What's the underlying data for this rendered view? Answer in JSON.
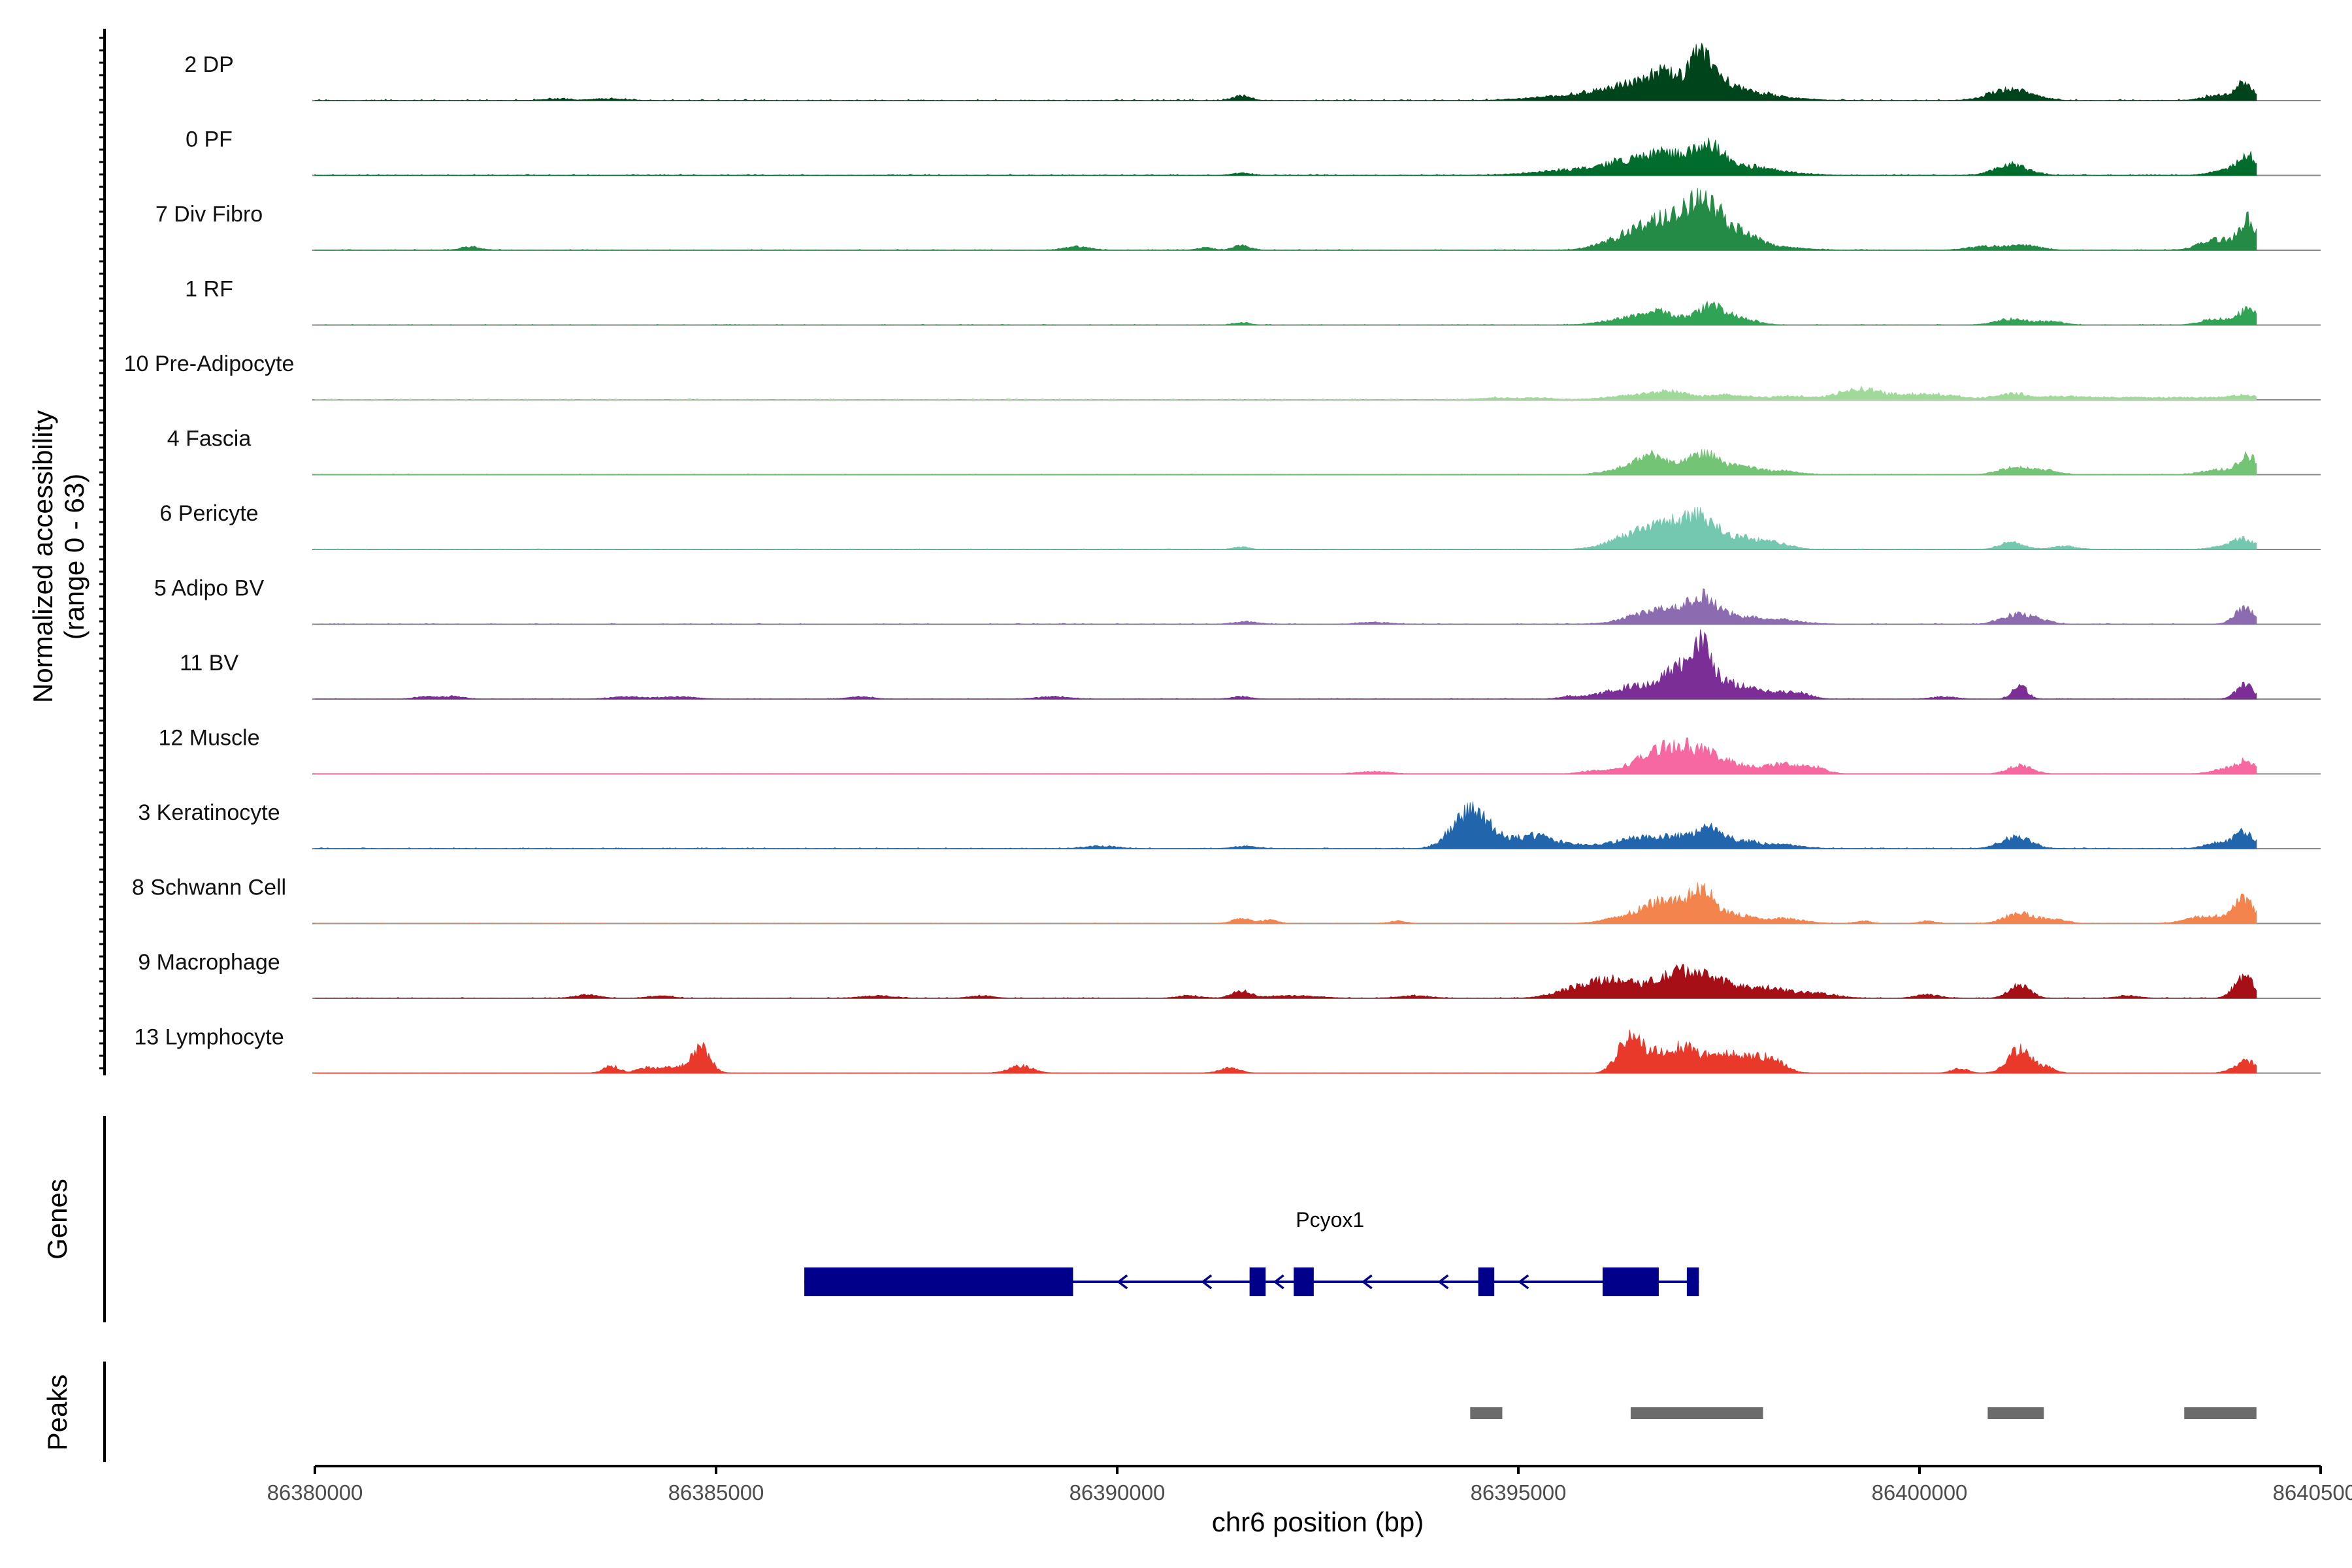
{
  "chart_data": {
    "type": "area",
    "title": "",
    "ylabel_line1": "Normalized accessibility",
    "ylabel_line2": "(range 0 - 63)",
    "ylim": [
      0,
      63
    ],
    "xlabel": "chr6 position (bp)",
    "xlim": [
      86380000,
      86405000
    ],
    "xticks": [
      86380000,
      86385000,
      86390000,
      86395000,
      86400000,
      86405000
    ],
    "xtick_labels": [
      "86380000",
      "86385000",
      "86390000",
      "86395000",
      "86400000",
      "86405000"
    ],
    "data_end": 86404200,
    "genes_panel_label": "Genes",
    "peaks_panel_label": "Peaks",
    "tracks": [
      {
        "name": "2 DP",
        "color": "#00441b",
        "noise": [
          1.2,
          0.35
        ],
        "peaks": [
          [
            86395800,
            500,
            5
          ],
          [
            86396300,
            250,
            9
          ],
          [
            86396750,
            200,
            13
          ],
          [
            86397000,
            300,
            12
          ],
          [
            86397250,
            100,
            15
          ],
          [
            86397400,
            200,
            22
          ],
          [
            86397850,
            250,
            6
          ],
          [
            86398300,
            300,
            2
          ],
          [
            86401100,
            220,
            10
          ],
          [
            86401500,
            150,
            2
          ],
          [
            86403700,
            180,
            4
          ],
          [
            86404050,
            110,
            15
          ],
          [
            86391550,
            100,
            4
          ],
          [
            86383000,
            150,
            1.5
          ],
          [
            86383650,
            200,
            1.5
          ]
        ]
      },
      {
        "name": "0 PF",
        "color": "#006d2c",
        "noise": [
          1.0,
          0.35
        ],
        "peaks": [
          [
            86395800,
            500,
            5
          ],
          [
            86396400,
            280,
            10
          ],
          [
            86396800,
            200,
            12
          ],
          [
            86397100,
            220,
            9
          ],
          [
            86397400,
            180,
            22
          ],
          [
            86397900,
            250,
            6
          ],
          [
            86398300,
            300,
            2
          ],
          [
            86401150,
            200,
            9
          ],
          [
            86404100,
            120,
            17
          ],
          [
            86403800,
            180,
            4
          ],
          [
            86391550,
            100,
            2
          ]
        ]
      },
      {
        "name": "7 Div Fibro",
        "color": "#238b45",
        "noise": [
          0.8,
          0.3
        ],
        "peaks": [
          [
            86381950,
            120,
            3
          ],
          [
            86396400,
            300,
            12
          ],
          [
            86396800,
            250,
            15
          ],
          [
            86397300,
            200,
            30
          ],
          [
            86397300,
            400,
            14
          ],
          [
            86397800,
            200,
            8
          ],
          [
            86398300,
            300,
            2
          ],
          [
            86400800,
            200,
            3
          ],
          [
            86401300,
            200,
            4
          ],
          [
            86404100,
            120,
            25
          ],
          [
            86403700,
            200,
            9
          ],
          [
            86389500,
            150,
            3
          ],
          [
            86391550,
            100,
            4
          ],
          [
            86391100,
            100,
            2
          ]
        ]
      },
      {
        "name": "1 RF",
        "color": "#31a354",
        "noise": [
          0.7,
          0.25
        ],
        "peaks": [
          [
            86396400,
            300,
            6
          ],
          [
            86396800,
            200,
            9
          ],
          [
            86397400,
            180,
            16
          ],
          [
            86397800,
            180,
            5
          ],
          [
            86401150,
            200,
            5
          ],
          [
            86401650,
            150,
            3
          ],
          [
            86404100,
            120,
            13
          ],
          [
            86403700,
            180,
            5
          ],
          [
            86391550,
            100,
            2
          ]
        ]
      },
      {
        "name": "10 Pre-Adipocyte",
        "color": "#a1d99b",
        "noise": [
          1.0,
          0.4
        ],
        "peaks": [
          [
            86396500,
            350,
            4
          ],
          [
            86396900,
            200,
            5
          ],
          [
            86397600,
            300,
            4
          ],
          [
            86398400,
            200,
            3
          ],
          [
            86399100,
            250,
            4
          ],
          [
            86399300,
            200,
            5
          ],
          [
            86399700,
            300,
            3
          ],
          [
            86400200,
            300,
            4
          ],
          [
            86401150,
            200,
            5
          ],
          [
            86401800,
            300,
            2
          ],
          [
            86403000,
            800,
            2
          ],
          [
            86404050,
            200,
            3
          ],
          [
            86394700,
            200,
            1.5
          ],
          [
            86395200,
            200,
            1.5
          ]
        ]
      },
      {
        "name": "4 Fascia",
        "color": "#74c476",
        "noise": [
          0.7,
          0.25
        ],
        "peaks": [
          [
            86396400,
            250,
            6
          ],
          [
            86396700,
            180,
            14
          ],
          [
            86397300,
            200,
            18
          ],
          [
            86397800,
            200,
            6
          ],
          [
            86398300,
            200,
            3
          ],
          [
            86401200,
            200,
            6
          ],
          [
            86401600,
            150,
            3
          ],
          [
            86404100,
            120,
            16
          ],
          [
            86403700,
            180,
            4
          ]
        ]
      },
      {
        "name": "6 Pericyte",
        "color": "#74c8b0",
        "noise": [
          0.6,
          0.2
        ],
        "peaks": [
          [
            86396500,
            300,
            14
          ],
          [
            86396900,
            200,
            16
          ],
          [
            86397300,
            200,
            26
          ],
          [
            86397800,
            200,
            9
          ],
          [
            86398200,
            200,
            5
          ],
          [
            86401150,
            150,
            6
          ],
          [
            86401800,
            150,
            3
          ],
          [
            86403800,
            150,
            3
          ],
          [
            86404050,
            120,
            9
          ],
          [
            86391550,
            100,
            2
          ]
        ]
      },
      {
        "name": "5 Adipo BV",
        "color": "#8c6bb1",
        "noise": [
          0.8,
          0.3
        ],
        "peaks": [
          [
            86396500,
            250,
            6
          ],
          [
            86396900,
            250,
            10
          ],
          [
            86397300,
            180,
            20
          ],
          [
            86397700,
            250,
            5
          ],
          [
            86398200,
            300,
            4
          ],
          [
            86401200,
            180,
            8
          ],
          [
            86401500,
            150,
            3
          ],
          [
            86404050,
            120,
            14
          ],
          [
            86391600,
            150,
            2
          ],
          [
            86393200,
            200,
            1.5
          ]
        ]
      },
      {
        "name": "11 BV",
        "color": "#7a2e96",
        "noise": [
          0.6,
          0.25
        ],
        "peaks": [
          [
            86396100,
            250,
            4
          ],
          [
            86396400,
            200,
            6
          ],
          [
            86396800,
            250,
            10
          ],
          [
            86397000,
            150,
            14
          ],
          [
            86397300,
            100,
            30
          ],
          [
            86397300,
            250,
            16
          ],
          [
            86397700,
            200,
            8
          ],
          [
            86398100,
            200,
            6
          ],
          [
            86398500,
            150,
            5
          ],
          [
            86401250,
            90,
            12
          ],
          [
            86404050,
            100,
            13
          ],
          [
            86381400,
            150,
            2
          ],
          [
            86381750,
            120,
            2
          ],
          [
            86383900,
            200,
            2
          ],
          [
            86384550,
            200,
            2
          ],
          [
            86386800,
            150,
            2
          ],
          [
            86389200,
            200,
            2
          ],
          [
            86391550,
            120,
            2
          ],
          [
            86395600,
            100,
            2
          ],
          [
            86400300,
            150,
            2
          ]
        ]
      },
      {
        "name": "12 Muscle",
        "color": "#f768a1",
        "noise": [
          0.4,
          0.2
        ],
        "peaks": [
          [
            86396500,
            250,
            8
          ],
          [
            86396800,
            200,
            14
          ],
          [
            86397100,
            200,
            16
          ],
          [
            86397400,
            200,
            12
          ],
          [
            86397800,
            200,
            6
          ],
          [
            86398300,
            200,
            8
          ],
          [
            86398700,
            150,
            5
          ],
          [
            86401250,
            150,
            7
          ],
          [
            86403900,
            200,
            5
          ],
          [
            86404100,
            120,
            8
          ],
          [
            86393200,
            200,
            2
          ],
          [
            86395900,
            150,
            2
          ]
        ]
      },
      {
        "name": "3 Keratinocyte",
        "color": "#2166ac",
        "noise": [
          0.9,
          0.3
        ],
        "peaks": [
          [
            86394450,
            220,
            30
          ],
          [
            86394200,
            150,
            6
          ],
          [
            86395200,
            250,
            11
          ],
          [
            86395900,
            250,
            3
          ],
          [
            86396450,
            220,
            8
          ],
          [
            86396900,
            200,
            9
          ],
          [
            86397350,
            180,
            17
          ],
          [
            86397800,
            200,
            6
          ],
          [
            86398300,
            250,
            3
          ],
          [
            86401200,
            180,
            10
          ],
          [
            86404050,
            120,
            15
          ],
          [
            86403700,
            150,
            5
          ],
          [
            86391600,
            150,
            2
          ],
          [
            86389800,
            200,
            2
          ]
        ]
      },
      {
        "name": "8 Schwann Cell",
        "color": "#f4844d",
        "noise": [
          0.6,
          0.25
        ],
        "peaks": [
          [
            86396500,
            300,
            8
          ],
          [
            86396900,
            250,
            16
          ],
          [
            86397300,
            150,
            25
          ],
          [
            86397700,
            200,
            7
          ],
          [
            86398300,
            250,
            4
          ],
          [
            86401250,
            180,
            9
          ],
          [
            86401700,
            150,
            3
          ],
          [
            86404050,
            120,
            20
          ],
          [
            86403500,
            200,
            5
          ],
          [
            86403800,
            150,
            4
          ],
          [
            86391550,
            120,
            4
          ],
          [
            86391900,
            100,
            3
          ],
          [
            86393500,
            100,
            2
          ],
          [
            86399300,
            100,
            2
          ],
          [
            86400100,
            100,
            2
          ]
        ]
      },
      {
        "name": "9 Macrophage",
        "color": "#a50f15",
        "noise": [
          0.8,
          0.3
        ],
        "peaks": [
          [
            86395700,
            250,
            8
          ],
          [
            86396100,
            200,
            12
          ],
          [
            86396500,
            250,
            10
          ],
          [
            86396900,
            200,
            12
          ],
          [
            86397200,
            200,
            18
          ],
          [
            86397600,
            200,
            10
          ],
          [
            86398100,
            250,
            8
          ],
          [
            86398700,
            250,
            4
          ],
          [
            86401250,
            130,
            11
          ],
          [
            86404050,
            120,
            19
          ],
          [
            86391550,
            120,
            6
          ],
          [
            86383400,
            150,
            3
          ],
          [
            86384300,
            150,
            2
          ],
          [
            86387000,
            200,
            2
          ],
          [
            86388300,
            150,
            2
          ],
          [
            86390900,
            150,
            2
          ],
          [
            86392200,
            300,
            2
          ],
          [
            86393700,
            200,
            2
          ],
          [
            86400100,
            150,
            3
          ],
          [
            86402600,
            150,
            2
          ]
        ]
      },
      {
        "name": "13 Lymphocyte",
        "color": "#e8392b",
        "noise": [
          0.3,
          0.15
        ],
        "peaks": [
          [
            86384800,
            120,
            22
          ],
          [
            86384400,
            150,
            5
          ],
          [
            86383700,
            100,
            6
          ],
          [
            86384100,
            100,
            4
          ],
          [
            86396400,
            120,
            30
          ],
          [
            86396750,
            200,
            18
          ],
          [
            86397100,
            150,
            18
          ],
          [
            86397500,
            200,
            14
          ],
          [
            86397900,
            200,
            12
          ],
          [
            86398200,
            150,
            8
          ],
          [
            86401250,
            150,
            20
          ],
          [
            86400500,
            100,
            4
          ],
          [
            86404100,
            100,
            10
          ],
          [
            86388800,
            150,
            6
          ],
          [
            86391400,
            120,
            5
          ],
          [
            86396200,
            100,
            5
          ],
          [
            86401600,
            100,
            4
          ],
          [
            86403900,
            100,
            3
          ]
        ]
      }
    ],
    "genes": [
      {
        "name": "Pcyox1",
        "strand": "-",
        "start": 86386100,
        "end": 86397250,
        "exons": [
          [
            86386100,
            86389450
          ],
          [
            86391650,
            86391850
          ],
          [
            86392200,
            86392450
          ],
          [
            86394500,
            86394700
          ],
          [
            86396050,
            86396750
          ],
          [
            86397100,
            86397250
          ]
        ],
        "arrows": [
          86390050,
          86391100,
          86392000,
          86393100,
          86394050,
          86395050
        ]
      }
    ],
    "peaks": [
      [
        86394400,
        86394800
      ],
      [
        86396400,
        86398050
      ],
      [
        86400850,
        86401550
      ],
      [
        86403300,
        86404200
      ]
    ]
  },
  "colors": {
    "axis": "#000000",
    "baseline": "#888888",
    "gene": "#00008b",
    "peak": "#6b6b6b"
  }
}
